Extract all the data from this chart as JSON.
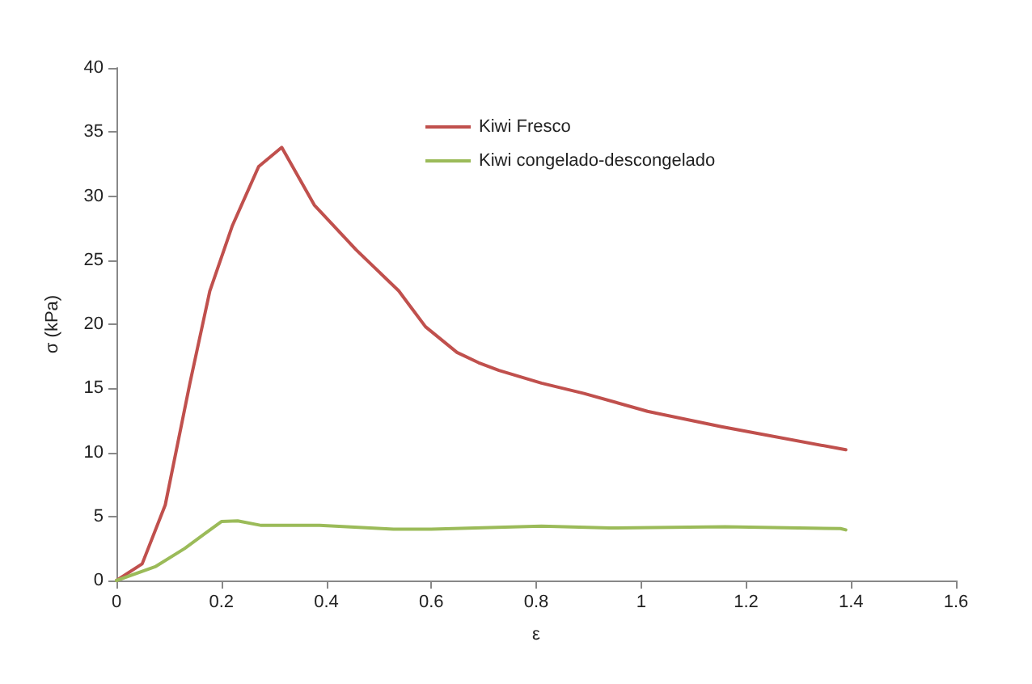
{
  "chart_data": {
    "type": "line",
    "xlabel": "ε",
    "ylabel": "σ (kPa)",
    "xlim": [
      0,
      1.6
    ],
    "xticks": [
      0,
      0.2,
      0.4,
      0.6,
      0.8,
      1,
      1.2,
      1.4,
      1.6
    ],
    "ylim": [
      0,
      40
    ],
    "yticks": [
      0,
      5,
      10,
      15,
      20,
      25,
      30,
      35,
      40
    ],
    "grid": false,
    "legend": "top",
    "marker": "none",
    "line_style": "solid",
    "series": [
      {
        "name": "Kiwi Fresco",
        "color": "#c0504d",
        "x": [
          0,
          0.049,
          0.093,
          0.14,
          0.178,
          0.221,
          0.271,
          0.315,
          0.377,
          0.457,
          0.538,
          0.589,
          0.649,
          0.69,
          0.729,
          0.81,
          0.891,
          1.012,
          1.153,
          1.39
        ],
        "values": [
          0,
          1.3,
          5.9,
          15.4,
          22.6,
          27.7,
          32.3,
          33.8,
          29.3,
          25.8,
          22.6,
          19.8,
          17.8,
          17.0,
          16.4,
          15.4,
          14.6,
          13.2,
          12.0,
          10.2
        ]
      },
      {
        "name": "Kiwi congelado-descongelado",
        "color": "#9bbb59",
        "x": [
          0,
          0.075,
          0.13,
          0.2,
          0.231,
          0.276,
          0.387,
          0.528,
          0.6,
          0.81,
          0.94,
          1.16,
          1.38,
          1.39
        ],
        "values": [
          0,
          1.1,
          2.5,
          4.6,
          4.65,
          4.3,
          4.3,
          4.0,
          4.0,
          4.25,
          4.1,
          4.2,
          4.05,
          3.95
        ]
      }
    ]
  }
}
